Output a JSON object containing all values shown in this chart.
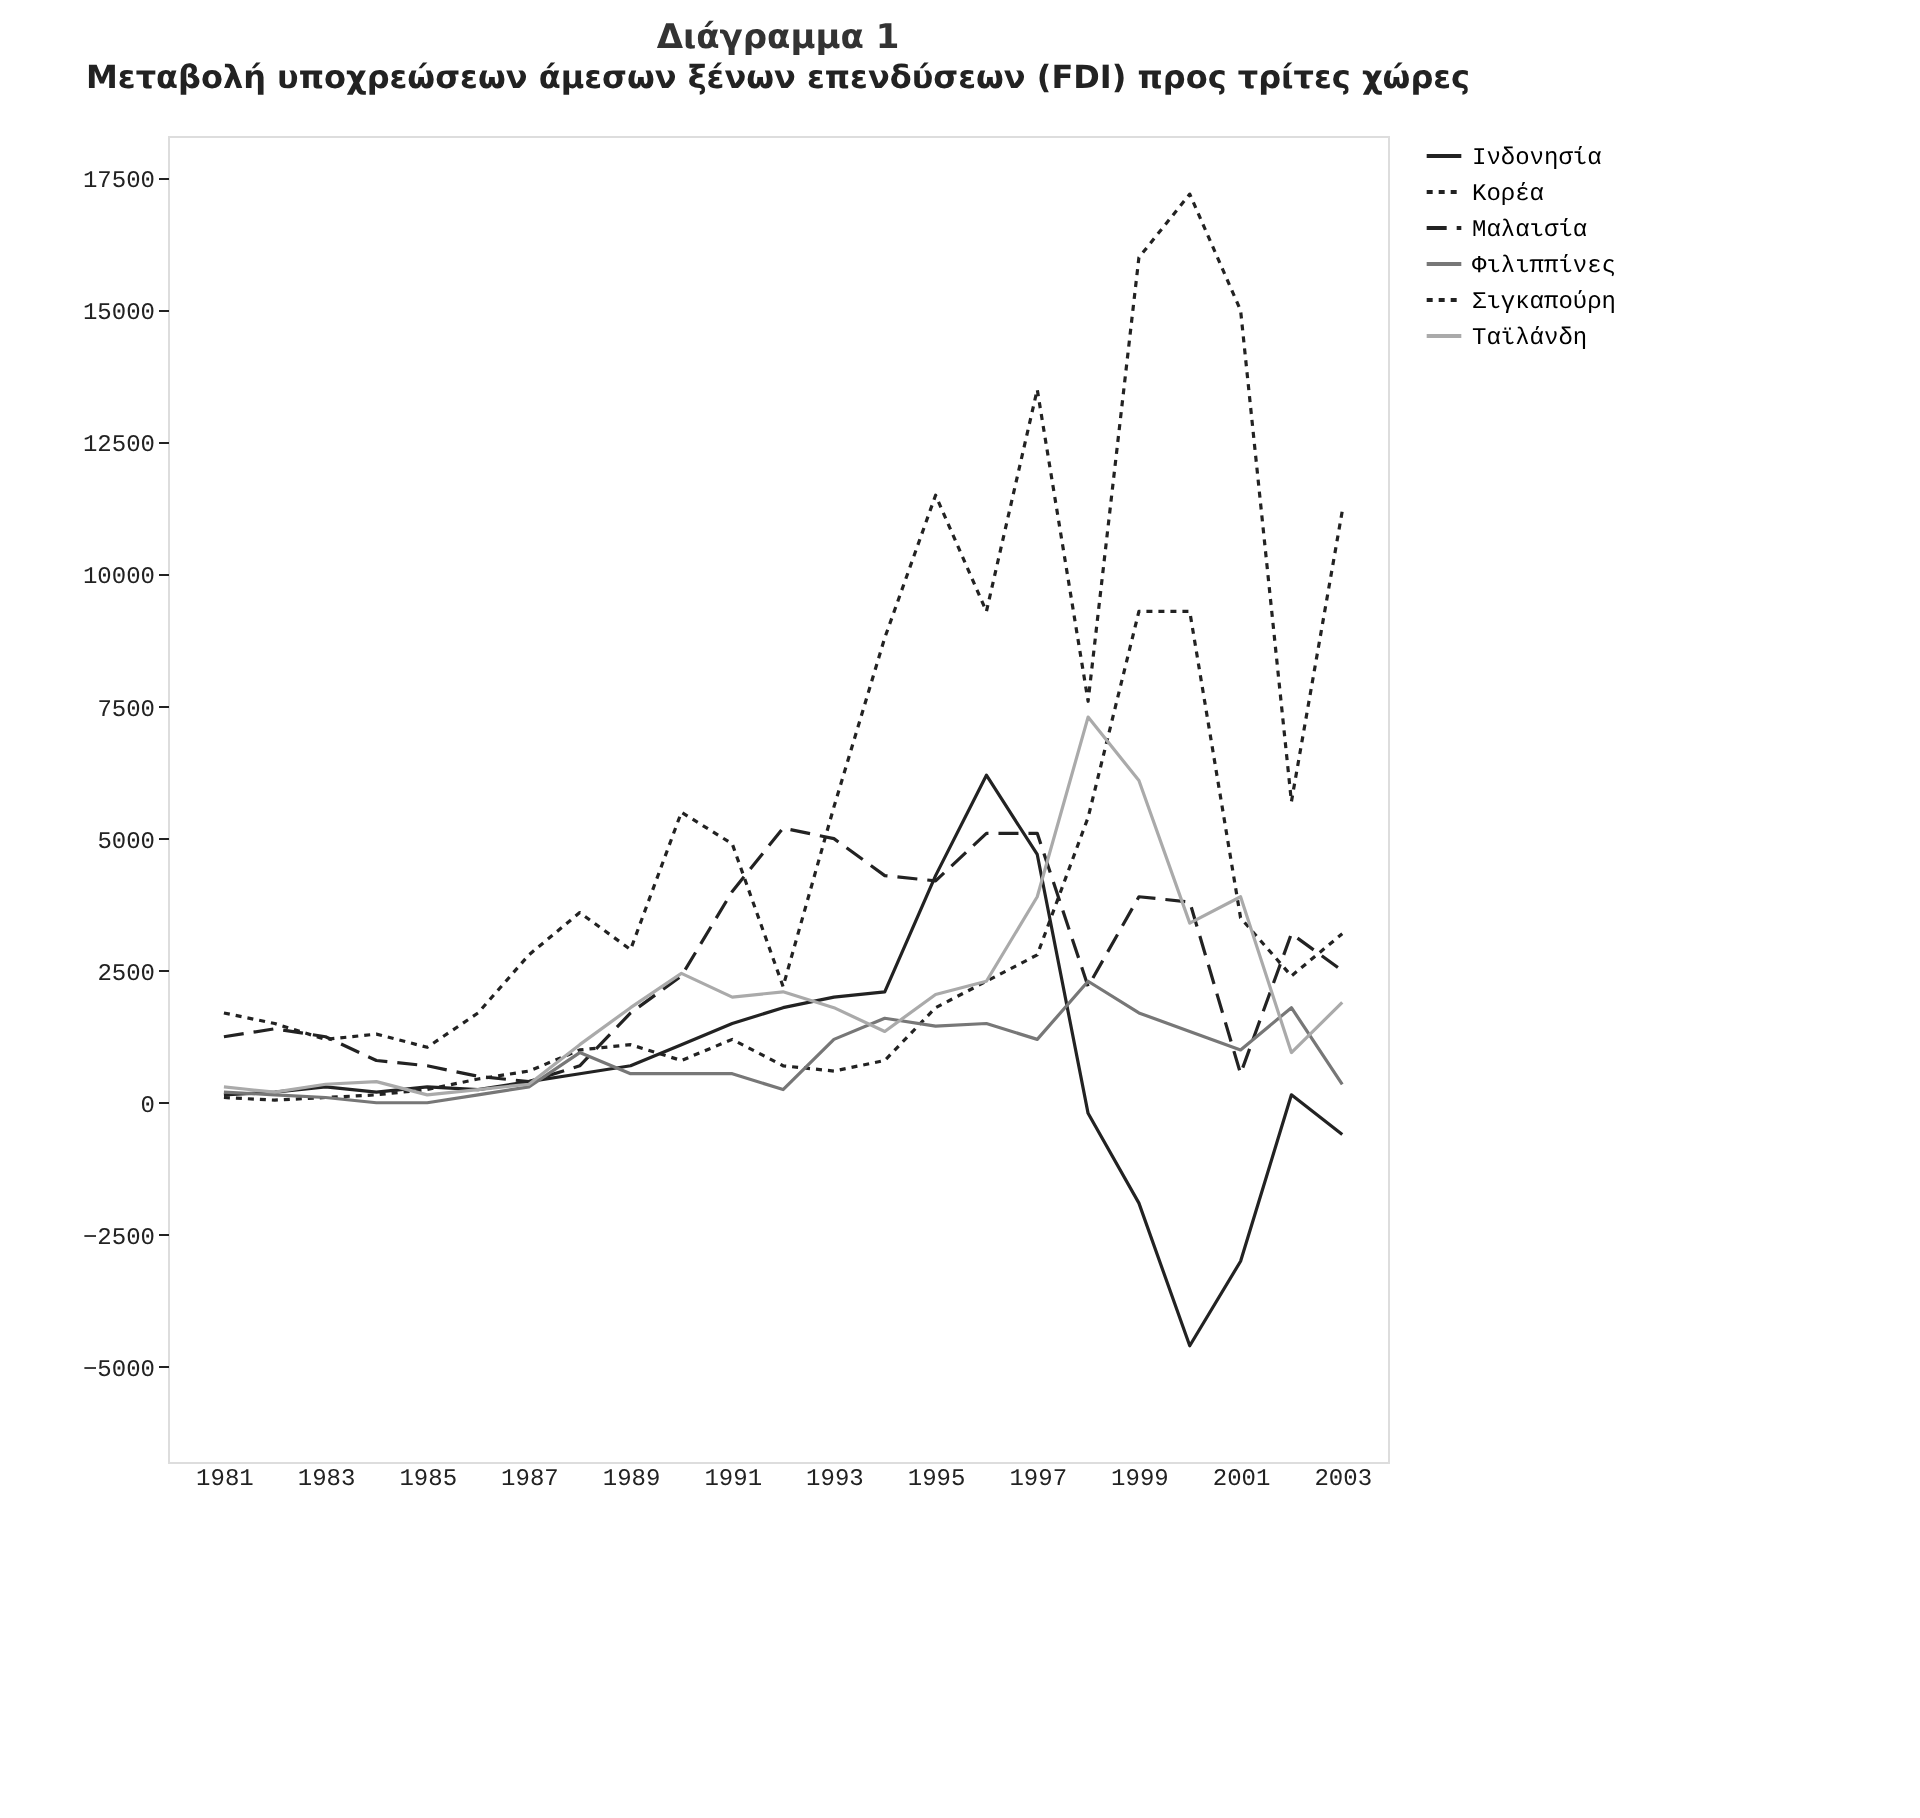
{
  "chart_data": {
    "type": "line",
    "title": "Διάγραμμα 1",
    "subtitle": "Μεταβολή υποχρεώσεων άμεσων ξένων επενδύσεων (FDI) προς τρίτες χώρες",
    "x": [
      1981,
      1982,
      1983,
      1984,
      1985,
      1986,
      1987,
      1988,
      1989,
      1990,
      1991,
      1992,
      1993,
      1994,
      1995,
      1996,
      1997,
      1998,
      1999,
      2000,
      2001,
      2002,
      2003
    ],
    "xlim": [
      1979.9,
      2003.9
    ],
    "xticks": [
      1981,
      1983,
      1985,
      1987,
      1989,
      1991,
      1993,
      1995,
      1997,
      1999,
      2001,
      2003
    ],
    "ylim": [
      -6800,
      18300
    ],
    "yticks": [
      -5000,
      -2500,
      0,
      2500,
      5000,
      7500,
      10000,
      12500,
      15000,
      17500
    ],
    "grid": false,
    "legend": "top right",
    "marker": "none",
    "series": [
      {
        "name": "Ινδονησία",
        "color": "#222222",
        "line_style": "solid",
        "values": [
          150,
          200,
          300,
          200,
          300,
          250,
          400,
          550,
          700,
          1100,
          1500,
          1800,
          2000,
          2100,
          4300,
          6200,
          4700,
          -200,
          -1900,
          -4600,
          -3000,
          150,
          -600
        ]
      },
      {
        "name": "Κορέα",
        "color": "#222222",
        "line_style": "dotted",
        "values": [
          100,
          50,
          100,
          150,
          250,
          450,
          600,
          1000,
          1100,
          800,
          1200,
          700,
          600,
          800,
          1800,
          2300,
          2800,
          5400,
          9300,
          9300,
          3500,
          2400,
          3200
        ]
      },
      {
        "name": "Μαλαισία",
        "color": "#222222",
        "line_style": "dashed",
        "values": [
          1250,
          1400,
          1250,
          800,
          700,
          500,
          400,
          700,
          1700,
          2400,
          4000,
          5200,
          5000,
          4300,
          4200,
          5100,
          5100,
          2200,
          3900,
          3800,
          550,
          3200,
          2500
        ]
      },
      {
        "name": "Φιλιππίνες",
        "color": "#777777",
        "line_style": "solid",
        "values": [
          200,
          150,
          100,
          0,
          0,
          150,
          300,
          950,
          550,
          550,
          550,
          250,
          1200,
          1600,
          1450,
          1500,
          1200,
          2300,
          1700,
          1350,
          1000,
          1800,
          350
        ]
      },
      {
        "name": "Σιγκαπούρη",
        "color": "#222222",
        "line_style": "dotted",
        "values": [
          1700,
          1500,
          1200,
          1300,
          1050,
          1700,
          2800,
          3600,
          2900,
          5500,
          4900,
          2200,
          5600,
          8800,
          11500,
          9300,
          13500,
          7600,
          16000,
          17200,
          15000,
          5700,
          11200
        ]
      },
      {
        "name": "Ταϊλάνδη",
        "color": "#aaaaaa",
        "line_style": "solid",
        "values": [
          300,
          200,
          350,
          400,
          150,
          250,
          350,
          1100,
          1800,
          2450,
          2000,
          2100,
          1800,
          1350,
          2050,
          2300,
          3900,
          7300,
          6100,
          3400,
          3900,
          950,
          1900
        ]
      }
    ]
  }
}
